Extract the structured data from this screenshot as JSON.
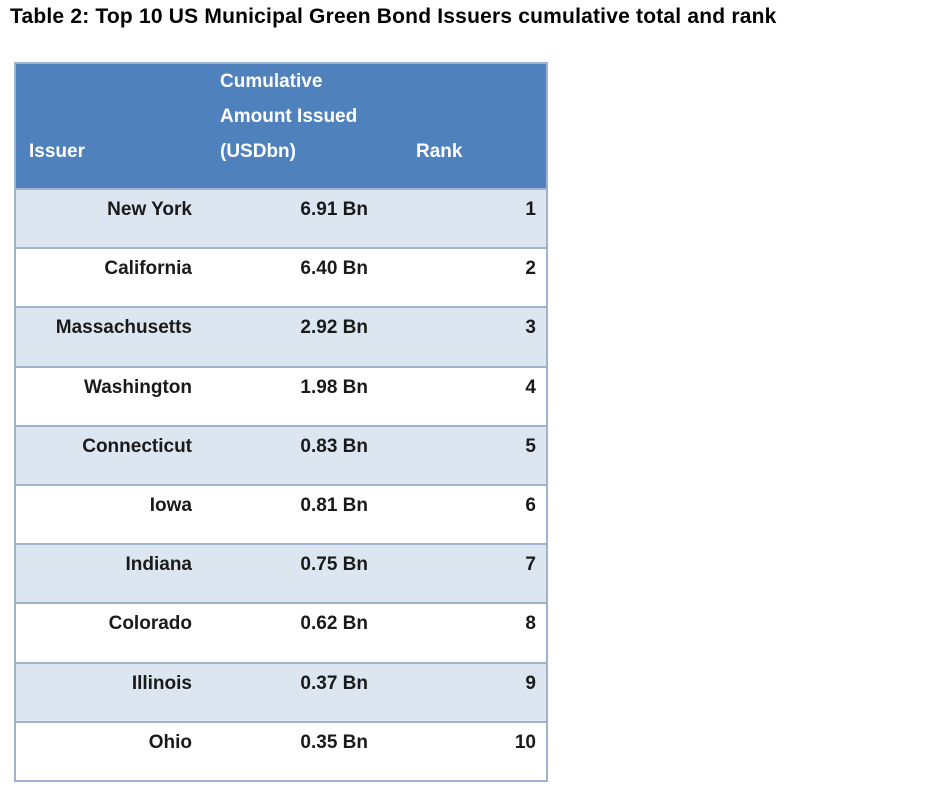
{
  "title": "Table 2: Top 10 US Municipal Green Bond Issuers cumulative total and rank",
  "table": {
    "header": {
      "issuer": "Issuer",
      "amount_line1": "Cumulative",
      "amount_line2": "Amount Issued",
      "amount_line3": "(USDbn)",
      "rank": "Rank"
    },
    "rows": [
      {
        "issuer": "New York",
        "amount": "6.91 Bn",
        "rank": "1"
      },
      {
        "issuer": "California",
        "amount": "6.40 Bn",
        "rank": "2"
      },
      {
        "issuer": "Massachusetts",
        "amount": "2.92 Bn",
        "rank": "3"
      },
      {
        "issuer": "Washington",
        "amount": "1.98 Bn",
        "rank": "4"
      },
      {
        "issuer": "Connecticut",
        "amount": "0.83 Bn",
        "rank": "5"
      },
      {
        "issuer": "Iowa",
        "amount": "0.81 Bn",
        "rank": "6"
      },
      {
        "issuer": "Indiana",
        "amount": "0.75 Bn",
        "rank": "7"
      },
      {
        "issuer": "Colorado",
        "amount": "0.62 Bn",
        "rank": "8"
      },
      {
        "issuer": "Illinois",
        "amount": "0.37 Bn",
        "rank": "9"
      },
      {
        "issuer": "Ohio",
        "amount": "0.35 Bn",
        "rank": "10"
      }
    ],
    "colors": {
      "header_bg": "#4f81bd",
      "header_text": "#ffffff",
      "row_alt_bg": "#dce6f1",
      "row_bg": "#ffffff",
      "border": "#9fb4cc",
      "text": "#1a1a1a",
      "title_text": "#000000"
    }
  }
}
